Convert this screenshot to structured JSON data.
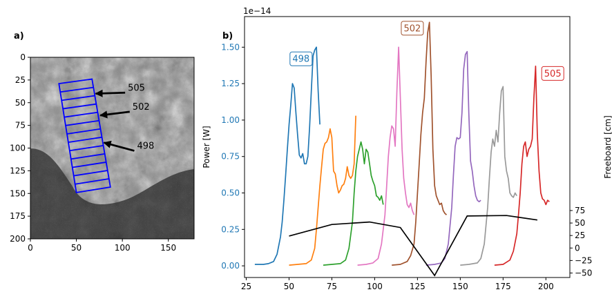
{
  "chart_data": [
    {
      "panel_label": "a)",
      "type": "image",
      "xlim": [
        0,
        178
      ],
      "ylim": [
        200,
        0
      ],
      "xticks": [
        0,
        50,
        100,
        150
      ],
      "yticks": [
        0,
        25,
        50,
        75,
        100,
        125,
        150,
        175,
        200
      ],
      "overlay_color": "#0000ff",
      "overlay_box": {
        "corners": [
          [
            31,
            29
          ],
          [
            67,
            24
          ],
          [
            87,
            143
          ],
          [
            50,
            149
          ]
        ],
        "rows": 13
      },
      "annotations": [
        {
          "text": "505",
          "arrow_from": [
            103,
            39
          ],
          "arrow_to": [
            71,
            40
          ]
        },
        {
          "text": "502",
          "arrow_from": [
            108,
            60
          ],
          "arrow_to": [
            76,
            64
          ]
        },
        {
          "text": "498",
          "arrow_from": [
            113,
            103
          ],
          "arrow_to": [
            80,
            94
          ]
        }
      ]
    },
    {
      "panel_label": "b)",
      "type": "line",
      "xlim": [
        24,
        214
      ],
      "xticks": [
        25,
        50,
        75,
        100,
        125,
        150,
        175,
        200
      ],
      "left_axis": {
        "label": "Power [W]",
        "offset_text": "1e−14",
        "color": "#1f77b4",
        "ylim": [
          -0.08,
          1.71
        ],
        "ticks": [
          0.0,
          0.25,
          0.5,
          0.75,
          1.0,
          1.25,
          1.5
        ],
        "tick_labels": [
          "0.00",
          "0.25",
          "0.50",
          "0.75",
          "1.00",
          "1.25",
          "1.50"
        ]
      },
      "right_axis": {
        "label": "Freeboard [cm]",
        "ylim": [
          -59,
          463
        ],
        "ticks": [
          -50,
          -25,
          0,
          25,
          50,
          75
        ],
        "tick_labels": [
          "−50",
          "−25",
          "0",
          "25",
          "50",
          "75"
        ]
      },
      "box_labels": [
        {
          "text": "498",
          "x": 57,
          "y": 1.42,
          "color": "#1f77b4"
        },
        {
          "text": "502",
          "x": 122,
          "y": 1.63,
          "color": "#a0522d"
        },
        {
          "text": "505",
          "x": 204,
          "y": 1.32,
          "color": "#d62728"
        }
      ],
      "series": [
        {
          "color": "#1f77b4",
          "points": [
            [
              30,
              0.01
            ],
            [
              35,
              0.01
            ],
            [
              38,
              0.015
            ],
            [
              41,
              0.03
            ],
            [
              43,
              0.08
            ],
            [
              45,
              0.2
            ],
            [
              46,
              0.3
            ],
            [
              47,
              0.45
            ],
            [
              48,
              0.62
            ],
            [
              49,
              0.8
            ],
            [
              50,
              0.97
            ],
            [
              51,
              1.1
            ],
            [
              52,
              1.25
            ],
            [
              53,
              1.22
            ],
            [
              54,
              1.05
            ],
            [
              55,
              0.9
            ],
            [
              56,
              0.76
            ],
            [
              57,
              0.74
            ],
            [
              58,
              0.77
            ],
            [
              59,
              0.7
            ],
            [
              60,
              0.7
            ],
            [
              61,
              0.75
            ],
            [
              62,
              0.95
            ],
            [
              63,
              1.2
            ],
            [
              64,
              1.44
            ],
            [
              65,
              1.48
            ],
            [
              66,
              1.5
            ],
            [
              67,
              1.2
            ],
            [
              68,
              0.97
            ]
          ]
        },
        {
          "color": "#ff7f0e",
          "points": [
            [
              50,
              0.005
            ],
            [
              55,
              0.01
            ],
            [
              60,
              0.015
            ],
            [
              63,
              0.04
            ],
            [
              65,
              0.12
            ],
            [
              66,
              0.25
            ],
            [
              67,
              0.4
            ],
            [
              68,
              0.55
            ],
            [
              69,
              0.68
            ],
            [
              70,
              0.8
            ],
            [
              71,
              0.84
            ],
            [
              72,
              0.85
            ],
            [
              73,
              0.88
            ],
            [
              74,
              0.94
            ],
            [
              75,
              0.88
            ],
            [
              76,
              0.65
            ],
            [
              77,
              0.63
            ],
            [
              78,
              0.55
            ],
            [
              79,
              0.5
            ],
            [
              80,
              0.52
            ],
            [
              81,
              0.55
            ],
            [
              82,
              0.56
            ],
            [
              83,
              0.6
            ],
            [
              84,
              0.68
            ],
            [
              85,
              0.62
            ],
            [
              86,
              0.6
            ],
            [
              87,
              0.62
            ],
            [
              88,
              0.7
            ],
            [
              89,
              1.03
            ]
          ]
        },
        {
          "color": "#2ca02c",
          "points": [
            [
              70,
              0.005
            ],
            [
              75,
              0.01
            ],
            [
              80,
              0.015
            ],
            [
              83,
              0.04
            ],
            [
              85,
              0.12
            ],
            [
              87,
              0.3
            ],
            [
              88,
              0.5
            ],
            [
              89,
              0.65
            ],
            [
              90,
              0.75
            ],
            [
              91,
              0.8
            ],
            [
              92,
              0.85
            ],
            [
              93,
              0.8
            ],
            [
              94,
              0.7
            ],
            [
              95,
              0.8
            ],
            [
              96,
              0.78
            ],
            [
              97,
              0.7
            ],
            [
              98,
              0.62
            ],
            [
              99,
              0.58
            ],
            [
              100,
              0.55
            ],
            [
              101,
              0.48
            ],
            [
              102,
              0.47
            ],
            [
              103,
              0.45
            ],
            [
              104,
              0.48
            ],
            [
              105,
              0.42
            ]
          ]
        },
        {
          "color": "#e377c2",
          "points": [
            [
              90,
              0.005
            ],
            [
              95,
              0.01
            ],
            [
              99,
              0.02
            ],
            [
              102,
              0.05
            ],
            [
              104,
              0.15
            ],
            [
              106,
              0.35
            ],
            [
              107,
              0.55
            ],
            [
              108,
              0.75
            ],
            [
              109,
              0.88
            ],
            [
              110,
              0.96
            ],
            [
              111,
              0.94
            ],
            [
              112,
              0.82
            ],
            [
              113,
              1.2
            ],
            [
              114,
              1.5
            ],
            [
              115,
              1.15
            ],
            [
              116,
              0.8
            ],
            [
              117,
              0.6
            ],
            [
              118,
              0.5
            ],
            [
              119,
              0.42
            ],
            [
              120,
              0.4
            ],
            [
              121,
              0.43
            ],
            [
              122,
              0.38
            ],
            [
              123,
              0.35
            ]
          ]
        },
        {
          "color": "#a0522d",
          "points": [
            [
              110,
              0.005
            ],
            [
              115,
              0.01
            ],
            [
              119,
              0.03
            ],
            [
              121,
              0.07
            ],
            [
              123,
              0.15
            ],
            [
              124,
              0.3
            ],
            [
              125,
              0.5
            ],
            [
              126,
              0.7
            ],
            [
              127,
              0.9
            ],
            [
              128,
              1.05
            ],
            [
              129,
              1.15
            ],
            [
              130,
              1.4
            ],
            [
              131,
              1.6
            ],
            [
              132,
              1.67
            ],
            [
              133,
              1.3
            ],
            [
              134,
              0.8
            ],
            [
              135,
              0.55
            ],
            [
              136,
              0.48
            ],
            [
              137,
              0.45
            ],
            [
              138,
              0.42
            ],
            [
              139,
              0.43
            ],
            [
              140,
              0.38
            ],
            [
              141,
              0.36
            ],
            [
              142,
              0.35
            ]
          ]
        },
        {
          "color": "#9467bd",
          "points": [
            [
              130,
              0.005
            ],
            [
              135,
              0.01
            ],
            [
              139,
              0.02
            ],
            [
              141,
              0.05
            ],
            [
              143,
              0.15
            ],
            [
              145,
              0.4
            ],
            [
              146,
              0.62
            ],
            [
              147,
              0.82
            ],
            [
              148,
              0.88
            ],
            [
              149,
              0.87
            ],
            [
              150,
              0.88
            ],
            [
              151,
              1.05
            ],
            [
              152,
              1.35
            ],
            [
              153,
              1.45
            ],
            [
              154,
              1.47
            ],
            [
              155,
              1.05
            ],
            [
              156,
              0.72
            ],
            [
              157,
              0.65
            ],
            [
              158,
              0.55
            ],
            [
              159,
              0.48
            ],
            [
              160,
              0.45
            ],
            [
              161,
              0.44
            ],
            [
              162,
              0.45
            ]
          ]
        },
        {
          "color": "#999999",
          "points": [
            [
              150,
              0.005
            ],
            [
              155,
              0.01
            ],
            [
              160,
              0.02
            ],
            [
              162,
              0.05
            ],
            [
              164,
              0.15
            ],
            [
              166,
              0.4
            ],
            [
              167,
              0.6
            ],
            [
              168,
              0.78
            ],
            [
              169,
              0.87
            ],
            [
              170,
              0.82
            ],
            [
              171,
              0.93
            ],
            [
              172,
              0.85
            ],
            [
              173,
              1.05
            ],
            [
              174,
              1.2
            ],
            [
              175,
              1.23
            ],
            [
              176,
              0.75
            ],
            [
              177,
              0.65
            ],
            [
              178,
              0.6
            ],
            [
              179,
              0.5
            ],
            [
              180,
              0.48
            ],
            [
              181,
              0.47
            ],
            [
              182,
              0.5
            ],
            [
              183,
              0.48
            ]
          ]
        },
        {
          "color": "#d62728",
          "points": [
            [
              170,
              0.005
            ],
            [
              175,
              0.01
            ],
            [
              179,
              0.04
            ],
            [
              181,
              0.1
            ],
            [
              183,
              0.22
            ],
            [
              184,
              0.35
            ],
            [
              185,
              0.5
            ],
            [
              186,
              0.7
            ],
            [
              187,
              0.82
            ],
            [
              188,
              0.85
            ],
            [
              189,
              0.75
            ],
            [
              190,
              0.8
            ],
            [
              191,
              0.82
            ],
            [
              192,
              0.87
            ],
            [
              193,
              1.15
            ],
            [
              194,
              1.37
            ],
            [
              195,
              0.9
            ],
            [
              196,
              0.65
            ],
            [
              197,
              0.5
            ],
            [
              198,
              0.46
            ],
            [
              199,
              0.45
            ],
            [
              200,
              0.42
            ],
            [
              201,
              0.45
            ],
            [
              202,
              0.44
            ]
          ]
        }
      ],
      "freeboard": {
        "color": "#000000",
        "points": [
          [
            50,
            24
          ],
          [
            75,
            47
          ],
          [
            97,
            52
          ],
          [
            115,
            41
          ],
          [
            135,
            -55
          ],
          [
            154,
            64
          ],
          [
            177,
            65
          ],
          [
            195,
            56
          ]
        ]
      }
    }
  ]
}
